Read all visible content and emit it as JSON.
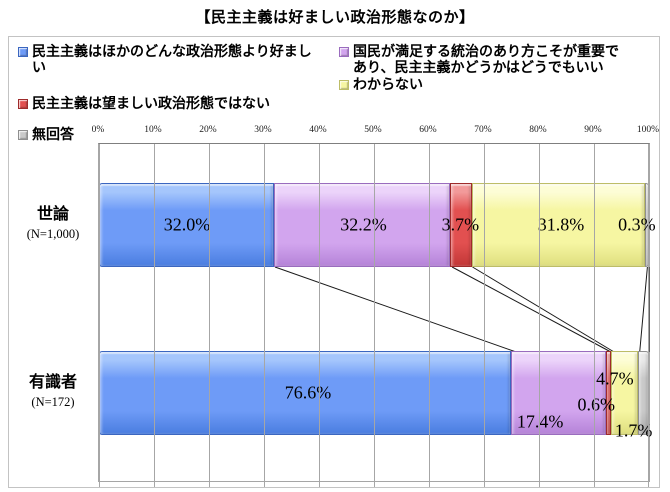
{
  "title": "【民主主義は好ましい政治形態なのか】",
  "chart_data": {
    "type": "bar",
    "stacked": true,
    "orientation": "horizontal",
    "title": "【民主主義は好ましい政治形態なのか】",
    "axis": {
      "position": "top",
      "min": 0,
      "max": 100,
      "step": 10,
      "unit": "%",
      "grid": true,
      "tick_labels": [
        "0%",
        "10%",
        "20%",
        "30%",
        "40%",
        "50%",
        "60%",
        "70%",
        "80%",
        "90%",
        "100%"
      ]
    },
    "categories": [
      {
        "label": "世論",
        "sub_label": "(N=1,000)"
      },
      {
        "label": "有識者",
        "sub_label": "(N=172)"
      }
    ],
    "series": [
      {
        "name": "民主主義はほかのどんな政治形態より好ましい",
        "color": "#6e9bf7",
        "color_light": "#a5c6fc",
        "color_dark": "#4a7de0",
        "color_edge": "#3b66c0",
        "values": [
          32.0,
          76.6
        ]
      },
      {
        "name": "国民が満足する統治のあり方こそが重要であり、民主主義かどうかはどうでもいい",
        "color": "#d2a5ee",
        "color_light": "#ecd4fa",
        "color_dark": "#b583d8",
        "color_edge": "#9a6cbe",
        "values": [
          32.2,
          17.4
        ]
      },
      {
        "name": "民主主義は望ましい政治形態ではない",
        "color": "#e25050",
        "color_light": "#f29a9a",
        "color_dark": "#c23737",
        "color_edge": "#9e2b2b",
        "values": [
          3.7,
          0.6
        ]
      },
      {
        "name": "わからない",
        "color": "#f6f6a2",
        "color_light": "#fdfdd6",
        "color_dark": "#dede7e",
        "color_edge": "#bdbd67",
        "values": [
          31.8,
          4.7
        ]
      },
      {
        "name": "無回答",
        "color": "#c9c9c9",
        "color_light": "#e9e9e9",
        "color_dark": "#ababab",
        "color_edge": "#8f8f8f",
        "values": [
          0.3,
          1.7
        ]
      }
    ],
    "data_labels": [
      [
        {
          "text": "32.0%",
          "x": 16,
          "y": 50
        },
        {
          "text": "32.2%",
          "x": 48.1,
          "y": 50
        },
        {
          "text": "3.7%",
          "x": 65.7,
          "y": 50
        },
        {
          "text": "31.8%",
          "x": 84,
          "y": 50
        },
        {
          "text": "0.3%",
          "x": 97.8,
          "y": 50
        }
      ],
      [
        {
          "text": "76.6%",
          "x": 38,
          "y": 50
        },
        {
          "text": "17.4%",
          "x": 80.2,
          "y": 85
        },
        {
          "text": "0.6%",
          "x": 90.4,
          "y": 64
        },
        {
          "text": "4.7%",
          "x": 93.8,
          "y": 33
        },
        {
          "text": "1.7%",
          "x": 97.2,
          "y": 95
        }
      ]
    ],
    "legend": {
      "position": "top",
      "columns": [
        [
          0,
          2,
          4
        ],
        [
          1,
          3
        ]
      ]
    },
    "series_lines": true
  }
}
